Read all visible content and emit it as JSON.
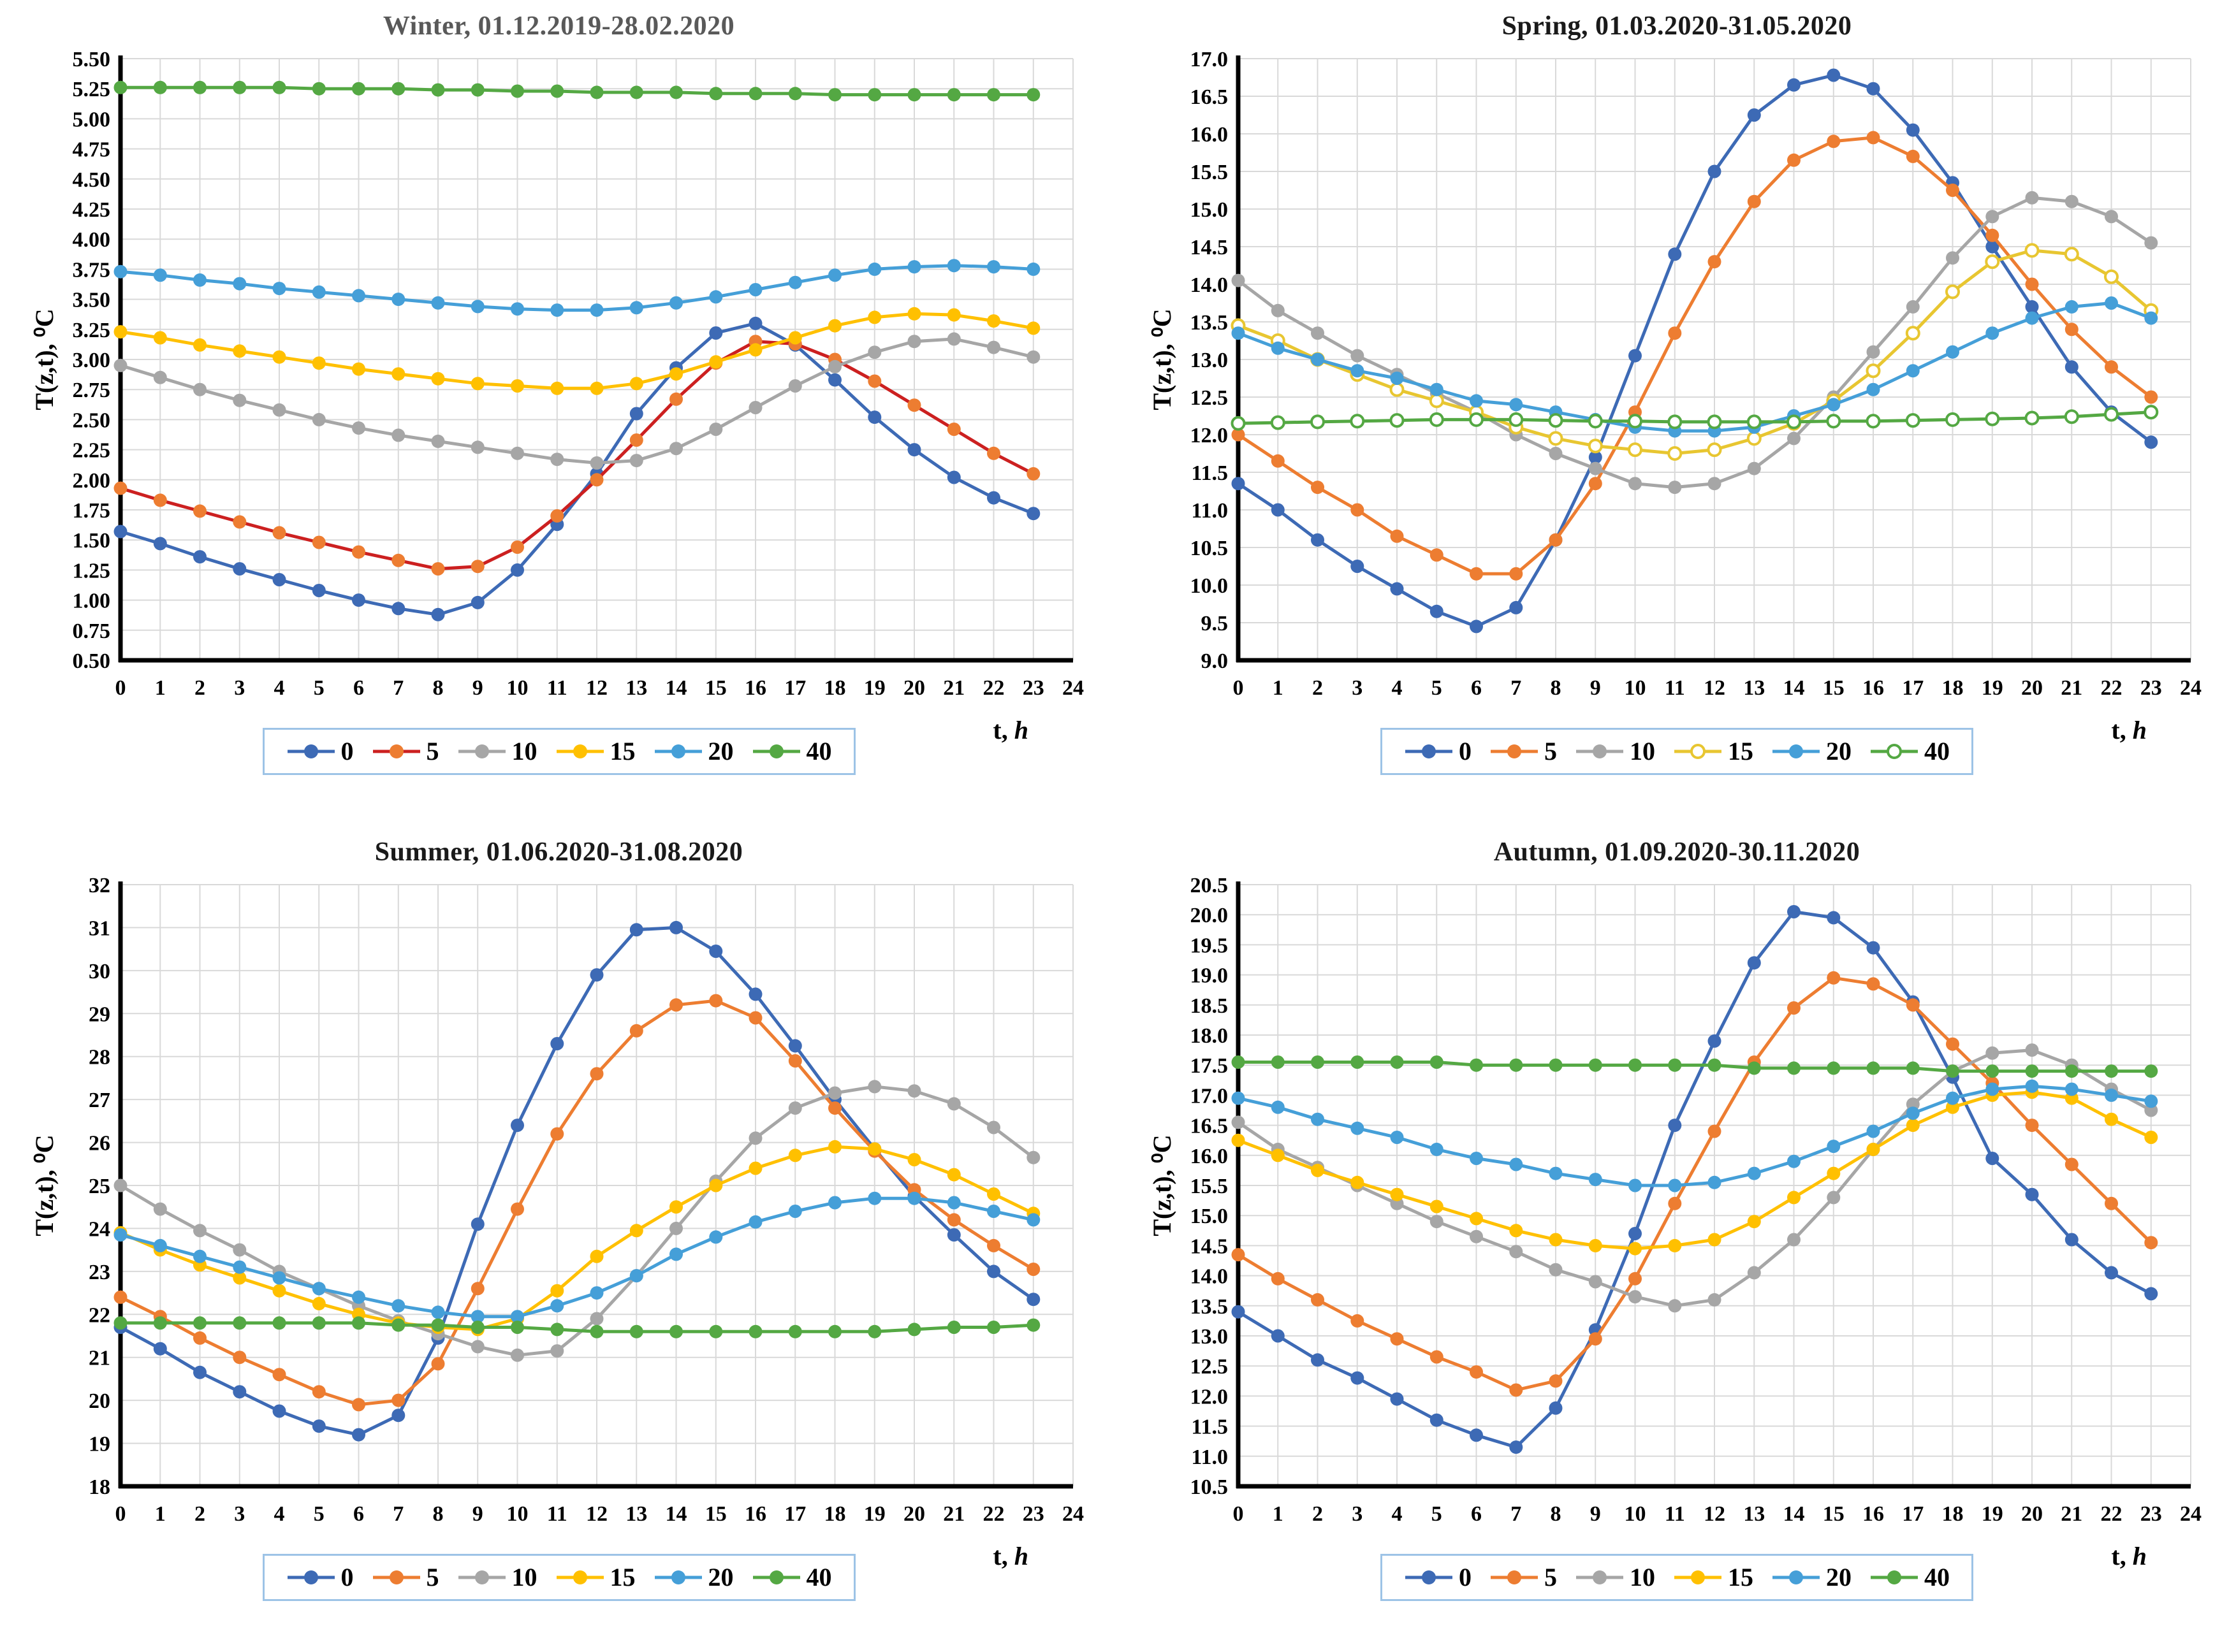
{
  "figure": {
    "background": "#ffffff",
    "legend_border_color": "#9DC3E6",
    "grid_color": "#D9D9D9",
    "axis_color": "#000000"
  },
  "chart_data": [
    {
      "type": "line",
      "title": "Winter, 01.12.2019-28.02.2020",
      "title_color": "#595959",
      "ylabel": "T(z,t), ⁰C",
      "xlabel": "t, h",
      "xlabel_t": "t,",
      "xlabel_h": "h",
      "x_range": [
        0,
        24
      ],
      "xtick_step": 1,
      "ylim": [
        0.5,
        5.5
      ],
      "ytick_step": 0.25,
      "ytick_decimals": 2,
      "grid": true,
      "legend_position": "bottom",
      "x": [
        0,
        1,
        2,
        3,
        4,
        5,
        6,
        7,
        8,
        9,
        10,
        11,
        12,
        13,
        14,
        15,
        16,
        17,
        18,
        19,
        20,
        21,
        22,
        23
      ],
      "series": [
        {
          "name": "0",
          "line_color": "#3D6AB5",
          "marker_color": "#3D6AB5",
          "hollow": false,
          "values": [
            1.57,
            1.47,
            1.36,
            1.26,
            1.17,
            1.08,
            1.0,
            0.93,
            0.88,
            0.98,
            1.25,
            1.63,
            2.05,
            2.55,
            2.93,
            3.22,
            3.3,
            3.12,
            2.83,
            2.52,
            2.25,
            2.02,
            1.85,
            1.72
          ]
        },
        {
          "name": "5",
          "line_color": "#CC2020",
          "marker_color": "#ED7D31",
          "hollow": false,
          "values": [
            1.93,
            1.83,
            1.74,
            1.65,
            1.56,
            1.48,
            1.4,
            1.33,
            1.26,
            1.28,
            1.44,
            1.7,
            2.0,
            2.33,
            2.67,
            2.97,
            3.15,
            3.13,
            3.0,
            2.82,
            2.62,
            2.42,
            2.22,
            2.05
          ]
        },
        {
          "name": "10",
          "line_color": "#A6A6A6",
          "marker_color": "#A6A6A6",
          "hollow": false,
          "values": [
            2.95,
            2.85,
            2.75,
            2.66,
            2.58,
            2.5,
            2.43,
            2.37,
            2.32,
            2.27,
            2.22,
            2.17,
            2.14,
            2.16,
            2.26,
            2.42,
            2.6,
            2.78,
            2.94,
            3.06,
            3.15,
            3.17,
            3.1,
            3.02
          ]
        },
        {
          "name": "15",
          "line_color": "#FFC000",
          "marker_color": "#FFC000",
          "hollow": false,
          "values": [
            3.23,
            3.18,
            3.12,
            3.07,
            3.02,
            2.97,
            2.92,
            2.88,
            2.84,
            2.8,
            2.78,
            2.76,
            2.76,
            2.8,
            2.88,
            2.98,
            3.08,
            3.18,
            3.28,
            3.35,
            3.38,
            3.37,
            3.32,
            3.26
          ]
        },
        {
          "name": "20",
          "line_color": "#459FD8",
          "marker_color": "#459FD8",
          "hollow": false,
          "values": [
            3.73,
            3.7,
            3.66,
            3.63,
            3.59,
            3.56,
            3.53,
            3.5,
            3.47,
            3.44,
            3.42,
            3.41,
            3.41,
            3.43,
            3.47,
            3.52,
            3.58,
            3.64,
            3.7,
            3.75,
            3.77,
            3.78,
            3.77,
            3.75
          ]
        },
        {
          "name": "40",
          "line_color": "#54A843",
          "marker_color": "#54A843",
          "hollow": false,
          "values": [
            5.26,
            5.26,
            5.26,
            5.26,
            5.26,
            5.25,
            5.25,
            5.25,
            5.24,
            5.24,
            5.23,
            5.23,
            5.22,
            5.22,
            5.22,
            5.21,
            5.21,
            5.21,
            5.2,
            5.2,
            5.2,
            5.2,
            5.2,
            5.2
          ]
        }
      ]
    },
    {
      "type": "line",
      "title": "Spring, 01.03.2020-31.05.2020",
      "title_color": "#1a1a1a",
      "ylabel": "T(z,t), ⁰C",
      "xlabel": "t, h",
      "xlabel_t": "t,",
      "xlabel_h": "h",
      "x_range": [
        0,
        24
      ],
      "xtick_step": 1,
      "ylim": [
        9.0,
        17.0
      ],
      "ytick_step": 0.5,
      "ytick_decimals": 1,
      "grid": true,
      "legend_position": "bottom",
      "x": [
        0,
        1,
        2,
        3,
        4,
        5,
        6,
        7,
        8,
        9,
        10,
        11,
        12,
        13,
        14,
        15,
        16,
        17,
        18,
        19,
        20,
        21,
        22,
        23
      ],
      "series": [
        {
          "name": "0",
          "line_color": "#3D6AB5",
          "marker_color": "#3D6AB5",
          "hollow": false,
          "values": [
            11.35,
            11.0,
            10.6,
            10.25,
            9.95,
            9.65,
            9.45,
            9.7,
            10.6,
            11.7,
            13.05,
            14.4,
            15.5,
            16.25,
            16.65,
            16.78,
            16.6,
            16.05,
            15.35,
            14.5,
            13.7,
            12.9,
            12.3,
            11.9
          ]
        },
        {
          "name": "5",
          "line_color": "#ED7D31",
          "marker_color": "#ED7D31",
          "hollow": false,
          "values": [
            12.0,
            11.65,
            11.3,
            11.0,
            10.65,
            10.4,
            10.15,
            10.15,
            10.6,
            11.35,
            12.3,
            13.35,
            14.3,
            15.1,
            15.65,
            15.9,
            15.95,
            15.7,
            15.25,
            14.65,
            14.0,
            13.4,
            12.9,
            12.5
          ]
        },
        {
          "name": "10",
          "line_color": "#A6A6A6",
          "marker_color": "#A6A6A6",
          "hollow": false,
          "values": [
            14.05,
            13.65,
            13.35,
            13.05,
            12.8,
            12.55,
            12.3,
            12.0,
            11.75,
            11.55,
            11.35,
            11.3,
            11.35,
            11.55,
            11.95,
            12.5,
            13.1,
            13.7,
            14.35,
            14.9,
            15.15,
            15.1,
            14.9,
            14.55
          ]
        },
        {
          "name": "15",
          "line_color": "#E8C631",
          "marker_color": "#E8C631",
          "hollow": true,
          "values": [
            13.45,
            13.25,
            13.0,
            12.8,
            12.6,
            12.45,
            12.3,
            12.1,
            11.95,
            11.85,
            11.8,
            11.75,
            11.8,
            11.95,
            12.15,
            12.45,
            12.85,
            13.35,
            13.9,
            14.3,
            14.45,
            14.4,
            14.1,
            13.65
          ]
        },
        {
          "name": "20",
          "line_color": "#459FD8",
          "marker_color": "#459FD8",
          "hollow": false,
          "values": [
            13.35,
            13.15,
            13.0,
            12.85,
            12.75,
            12.6,
            12.45,
            12.4,
            12.3,
            12.2,
            12.1,
            12.05,
            12.05,
            12.1,
            12.25,
            12.4,
            12.6,
            12.85,
            13.1,
            13.35,
            13.55,
            13.7,
            13.75,
            13.55
          ]
        },
        {
          "name": "40",
          "line_color": "#54A843",
          "marker_color": "#54A843",
          "hollow": true,
          "values": [
            12.15,
            12.16,
            12.17,
            12.18,
            12.19,
            12.2,
            12.2,
            12.2,
            12.19,
            12.18,
            12.18,
            12.17,
            12.17,
            12.17,
            12.17,
            12.18,
            12.18,
            12.19,
            12.2,
            12.21,
            12.22,
            12.24,
            12.27,
            12.3
          ]
        }
      ]
    },
    {
      "type": "line",
      "title": "Summer, 01.06.2020-31.08.2020",
      "title_color": "#1a1a1a",
      "ylabel": "T(z,t), ⁰C",
      "xlabel": "t, h",
      "xlabel_t": "t,",
      "xlabel_h": "h",
      "x_range": [
        0,
        24
      ],
      "xtick_step": 1,
      "ylim": [
        18,
        32
      ],
      "ytick_step": 1,
      "ytick_decimals": 0,
      "grid": true,
      "legend_position": "bottom",
      "x": [
        0,
        1,
        2,
        3,
        4,
        5,
        6,
        7,
        8,
        9,
        10,
        11,
        12,
        13,
        14,
        15,
        16,
        17,
        18,
        19,
        20,
        21,
        22,
        23
      ],
      "series": [
        {
          "name": "0",
          "line_color": "#3D6AB5",
          "marker_color": "#3D6AB5",
          "hollow": false,
          "values": [
            21.7,
            21.2,
            20.65,
            20.2,
            19.75,
            19.4,
            19.2,
            19.65,
            21.45,
            24.1,
            26.4,
            28.3,
            29.9,
            30.95,
            31.0,
            30.45,
            29.45,
            28.25,
            27.0,
            25.85,
            24.75,
            23.85,
            23.0,
            22.35
          ]
        },
        {
          "name": "5",
          "line_color": "#ED7D31",
          "marker_color": "#ED7D31",
          "hollow": false,
          "values": [
            22.4,
            21.95,
            21.45,
            21.0,
            20.6,
            20.2,
            19.9,
            20.0,
            20.85,
            22.6,
            24.45,
            26.2,
            27.6,
            28.6,
            29.2,
            29.3,
            28.9,
            27.9,
            26.8,
            25.8,
            24.9,
            24.2,
            23.6,
            23.05
          ]
        },
        {
          "name": "10",
          "line_color": "#A6A6A6",
          "marker_color": "#A6A6A6",
          "hollow": false,
          "values": [
            25.0,
            24.45,
            23.95,
            23.5,
            23.0,
            22.6,
            22.2,
            21.85,
            21.55,
            21.25,
            21.05,
            21.15,
            21.9,
            22.9,
            24.0,
            25.1,
            26.1,
            26.8,
            27.15,
            27.3,
            27.2,
            26.9,
            26.35,
            25.65
          ]
        },
        {
          "name": "15",
          "line_color": "#FFC000",
          "marker_color": "#FFC000",
          "hollow": false,
          "values": [
            23.9,
            23.5,
            23.15,
            22.85,
            22.55,
            22.25,
            22.0,
            21.8,
            21.7,
            21.65,
            21.9,
            22.55,
            23.35,
            23.95,
            24.5,
            25.0,
            25.4,
            25.7,
            25.9,
            25.85,
            25.6,
            25.25,
            24.8,
            24.35
          ]
        },
        {
          "name": "20",
          "line_color": "#459FD8",
          "marker_color": "#459FD8",
          "hollow": false,
          "values": [
            23.85,
            23.6,
            23.35,
            23.1,
            22.85,
            22.6,
            22.4,
            22.2,
            22.05,
            21.95,
            21.95,
            22.2,
            22.5,
            22.9,
            23.4,
            23.8,
            24.15,
            24.4,
            24.6,
            24.7,
            24.7,
            24.6,
            24.4,
            24.2
          ]
        },
        {
          "name": "40",
          "line_color": "#54A843",
          "marker_color": "#54A843",
          "hollow": false,
          "values": [
            21.8,
            21.8,
            21.8,
            21.8,
            21.8,
            21.8,
            21.8,
            21.75,
            21.75,
            21.7,
            21.7,
            21.65,
            21.6,
            21.6,
            21.6,
            21.6,
            21.6,
            21.6,
            21.6,
            21.6,
            21.65,
            21.7,
            21.7,
            21.75
          ]
        }
      ]
    },
    {
      "type": "line",
      "title": "Autumn, 01.09.2020-30.11.2020",
      "title_color": "#1a1a1a",
      "ylabel": "T(z,t), ⁰C",
      "xlabel": "t, h",
      "xlabel_t": "t,",
      "xlabel_h": "h",
      "x_range": [
        0,
        24
      ],
      "xtick_step": 1,
      "ylim": [
        10.5,
        20.5
      ],
      "ytick_step": 0.5,
      "ytick_decimals": 1,
      "grid": true,
      "legend_position": "bottom",
      "x": [
        0,
        1,
        2,
        3,
        4,
        5,
        6,
        7,
        8,
        9,
        10,
        11,
        12,
        13,
        14,
        15,
        16,
        17,
        18,
        19,
        20,
        21,
        22,
        23
      ],
      "series": [
        {
          "name": "0",
          "line_color": "#3D6AB5",
          "marker_color": "#3D6AB5",
          "hollow": false,
          "values": [
            13.4,
            13.0,
            12.6,
            12.3,
            11.95,
            11.6,
            11.35,
            11.15,
            11.8,
            13.1,
            14.7,
            16.5,
            17.9,
            19.2,
            20.05,
            19.95,
            19.45,
            18.55,
            17.3,
            15.95,
            15.35,
            14.6,
            14.05,
            13.7
          ]
        },
        {
          "name": "5",
          "line_color": "#ED7D31",
          "marker_color": "#ED7D31",
          "hollow": false,
          "values": [
            14.35,
            13.95,
            13.6,
            13.25,
            12.95,
            12.65,
            12.4,
            12.1,
            12.25,
            12.95,
            13.95,
            15.2,
            16.4,
            17.55,
            18.45,
            18.95,
            18.85,
            18.5,
            17.85,
            17.2,
            16.5,
            15.85,
            15.2,
            14.55
          ]
        },
        {
          "name": "10",
          "line_color": "#A6A6A6",
          "marker_color": "#A6A6A6",
          "hollow": false,
          "values": [
            16.55,
            16.1,
            15.8,
            15.5,
            15.2,
            14.9,
            14.65,
            14.4,
            14.1,
            13.9,
            13.65,
            13.5,
            13.6,
            14.05,
            14.6,
            15.3,
            16.1,
            16.85,
            17.4,
            17.7,
            17.75,
            17.5,
            17.1,
            16.75
          ]
        },
        {
          "name": "15",
          "line_color": "#FFC000",
          "marker_color": "#FFC000",
          "hollow": false,
          "values": [
            16.25,
            16.0,
            15.75,
            15.55,
            15.35,
            15.15,
            14.95,
            14.75,
            14.6,
            14.5,
            14.45,
            14.5,
            14.6,
            14.9,
            15.3,
            15.7,
            16.1,
            16.5,
            16.8,
            17.0,
            17.05,
            16.95,
            16.6,
            16.3
          ]
        },
        {
          "name": "20",
          "line_color": "#459FD8",
          "marker_color": "#459FD8",
          "hollow": false,
          "values": [
            16.95,
            16.8,
            16.6,
            16.45,
            16.3,
            16.1,
            15.95,
            15.85,
            15.7,
            15.6,
            15.5,
            15.5,
            15.55,
            15.7,
            15.9,
            16.15,
            16.4,
            16.7,
            16.95,
            17.1,
            17.15,
            17.1,
            17.0,
            16.9
          ]
        },
        {
          "name": "40",
          "line_color": "#54A843",
          "marker_color": "#54A843",
          "hollow": false,
          "values": [
            17.55,
            17.55,
            17.55,
            17.55,
            17.55,
            17.55,
            17.5,
            17.5,
            17.5,
            17.5,
            17.5,
            17.5,
            17.5,
            17.45,
            17.45,
            17.45,
            17.45,
            17.45,
            17.4,
            17.4,
            17.4,
            17.4,
            17.4,
            17.4
          ]
        }
      ]
    }
  ]
}
